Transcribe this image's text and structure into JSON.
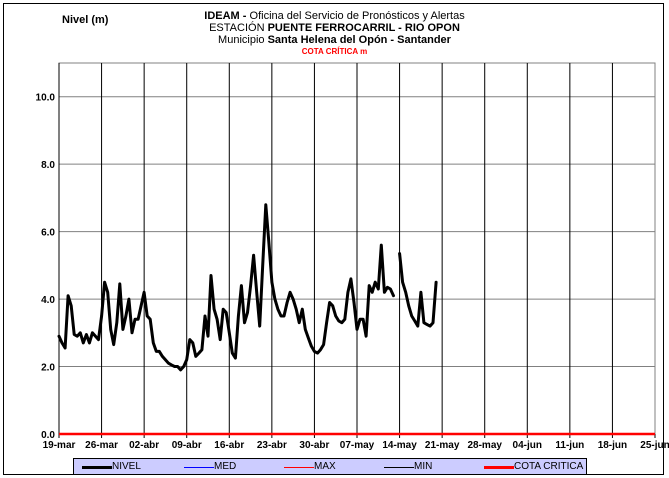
{
  "header": {
    "line1_bold": "IDEAM -",
    "line1_rest": " Oficina del Servicio de Pronósticos y Alertas",
    "line2_plain": "ESTACIÓN ",
    "line2_bold": "PUENTE FERROCARRIL - RIO OPON",
    "line3_plain": "Municipio ",
    "line3_bold": "Santa Helena del Opón - Santander",
    "line4": "COTA CRÍTICA     m"
  },
  "chart_data": {
    "type": "line",
    "title": "",
    "ylabel": "Nivel (m)",
    "xlabel": "",
    "ylim": [
      0,
      11
    ],
    "yticks": [
      0,
      2,
      4,
      6,
      8,
      10
    ],
    "ytick_labels": [
      "0.0",
      "2.0",
      "4.0",
      "6.0",
      "8.0",
      "10.0"
    ],
    "xticks": [
      "19-mar",
      "26-mar",
      "02-abr",
      "09-abr",
      "16-abr",
      "23-abr",
      "30-abr",
      "07-may",
      "14-may",
      "21-may",
      "28-may",
      "04-jun",
      "11-jun",
      "18-jun",
      "25-jun"
    ],
    "grid": true,
    "legend_placement": "bottom",
    "series": [
      {
        "name": "NIVEL",
        "color": "#000000",
        "points": [
          [
            0.0,
            2.9
          ],
          [
            0.5,
            2.7
          ],
          [
            1.0,
            2.55
          ],
          [
            1.5,
            4.1
          ],
          [
            2.0,
            3.8
          ],
          [
            2.5,
            2.95
          ],
          [
            3.0,
            2.9
          ],
          [
            3.5,
            3.0
          ],
          [
            4.0,
            2.7
          ],
          [
            4.5,
            2.95
          ],
          [
            5.0,
            2.7
          ],
          [
            5.5,
            3.0
          ],
          [
            6.0,
            2.9
          ],
          [
            6.5,
            2.8
          ],
          [
            7.0,
            3.5
          ],
          [
            7.5,
            4.5
          ],
          [
            8.0,
            4.2
          ],
          [
            8.5,
            3.1
          ],
          [
            9.0,
            2.65
          ],
          [
            9.5,
            3.3
          ],
          [
            10.0,
            4.45
          ],
          [
            10.5,
            3.1
          ],
          [
            11.0,
            3.5
          ],
          [
            11.5,
            4.0
          ],
          [
            12.0,
            3.0
          ],
          [
            12.5,
            3.4
          ],
          [
            13.0,
            3.4
          ],
          [
            13.5,
            3.8
          ],
          [
            14.0,
            4.2
          ],
          [
            14.5,
            3.5
          ],
          [
            15.0,
            3.4
          ],
          [
            15.5,
            2.7
          ],
          [
            16.0,
            2.45
          ],
          [
            16.5,
            2.45
          ],
          [
            17.0,
            2.3
          ],
          [
            17.5,
            2.2
          ],
          [
            18.0,
            2.1
          ],
          [
            18.5,
            2.05
          ],
          [
            19.0,
            2.0
          ],
          [
            19.5,
            2.0
          ],
          [
            20.0,
            1.9
          ],
          [
            20.5,
            2.0
          ],
          [
            21.0,
            2.2
          ],
          [
            21.5,
            2.8
          ],
          [
            22.0,
            2.7
          ],
          [
            22.5,
            2.3
          ],
          [
            23.0,
            2.4
          ],
          [
            23.5,
            2.5
          ],
          [
            24.0,
            3.5
          ],
          [
            24.5,
            2.9
          ],
          [
            25.0,
            4.7
          ],
          [
            25.5,
            3.7
          ],
          [
            26.0,
            3.4
          ],
          [
            26.5,
            2.8
          ],
          [
            27.0,
            3.7
          ],
          [
            27.5,
            3.6
          ],
          [
            28.0,
            3.0
          ],
          [
            28.5,
            2.4
          ],
          [
            29.0,
            2.25
          ],
          [
            29.5,
            3.5
          ],
          [
            30.0,
            4.4
          ],
          [
            30.5,
            3.3
          ],
          [
            31.0,
            3.6
          ],
          [
            31.5,
            4.4
          ],
          [
            32.0,
            5.3
          ],
          [
            32.5,
            4.2
          ],
          [
            33.0,
            3.2
          ],
          [
            33.5,
            5.0
          ],
          [
            34.0,
            6.8
          ],
          [
            34.5,
            5.7
          ],
          [
            35.0,
            4.5
          ],
          [
            35.5,
            4.0
          ],
          [
            36.0,
            3.7
          ],
          [
            36.5,
            3.5
          ],
          [
            37.0,
            3.5
          ],
          [
            37.5,
            3.9
          ],
          [
            38.0,
            4.2
          ],
          [
            38.5,
            4.0
          ],
          [
            39.0,
            3.7
          ],
          [
            39.5,
            3.3
          ],
          [
            40.0,
            3.7
          ],
          [
            40.5,
            3.1
          ],
          [
            41.0,
            2.85
          ],
          [
            41.5,
            2.6
          ],
          [
            42.0,
            2.45
          ],
          [
            42.5,
            2.4
          ],
          [
            43.0,
            2.5
          ],
          [
            43.5,
            2.65
          ],
          [
            44.0,
            3.3
          ],
          [
            44.5,
            3.9
          ],
          [
            45.0,
            3.8
          ],
          [
            45.5,
            3.5
          ],
          [
            46.0,
            3.35
          ],
          [
            46.5,
            3.3
          ],
          [
            47.0,
            3.4
          ],
          [
            47.5,
            4.2
          ],
          [
            48.0,
            4.6
          ],
          [
            48.5,
            3.9
          ],
          [
            49.0,
            3.1
          ],
          [
            49.5,
            3.4
          ],
          [
            50.0,
            3.4
          ],
          [
            50.5,
            2.9
          ],
          [
            51.0,
            4.4
          ],
          [
            51.5,
            4.2
          ],
          [
            52.0,
            4.5
          ],
          [
            52.5,
            4.3
          ],
          [
            53.0,
            5.6
          ],
          [
            53.5,
            4.2
          ],
          [
            54.0,
            4.35
          ],
          [
            54.5,
            4.3
          ],
          [
            55.0,
            4.1
          ],
          null,
          [
            56.0,
            5.35
          ],
          [
            56.5,
            4.5
          ],
          [
            57.0,
            4.2
          ],
          [
            57.5,
            3.8
          ],
          [
            58.0,
            3.5
          ],
          [
            58.5,
            3.35
          ],
          [
            59.0,
            3.2
          ],
          [
            59.5,
            4.2
          ],
          [
            60.0,
            3.3
          ],
          [
            60.5,
            3.25
          ],
          [
            61.0,
            3.2
          ],
          [
            61.5,
            3.3
          ],
          [
            62.0,
            4.5
          ]
        ]
      },
      {
        "name": "MED",
        "color": "#0000ff"
      },
      {
        "name": "MAX",
        "color": "#ff0000"
      },
      {
        "name": "MIN",
        "color": "#000000"
      },
      {
        "name": "COTA CRITICA",
        "color": "#ff0000",
        "value": 0
      }
    ]
  }
}
